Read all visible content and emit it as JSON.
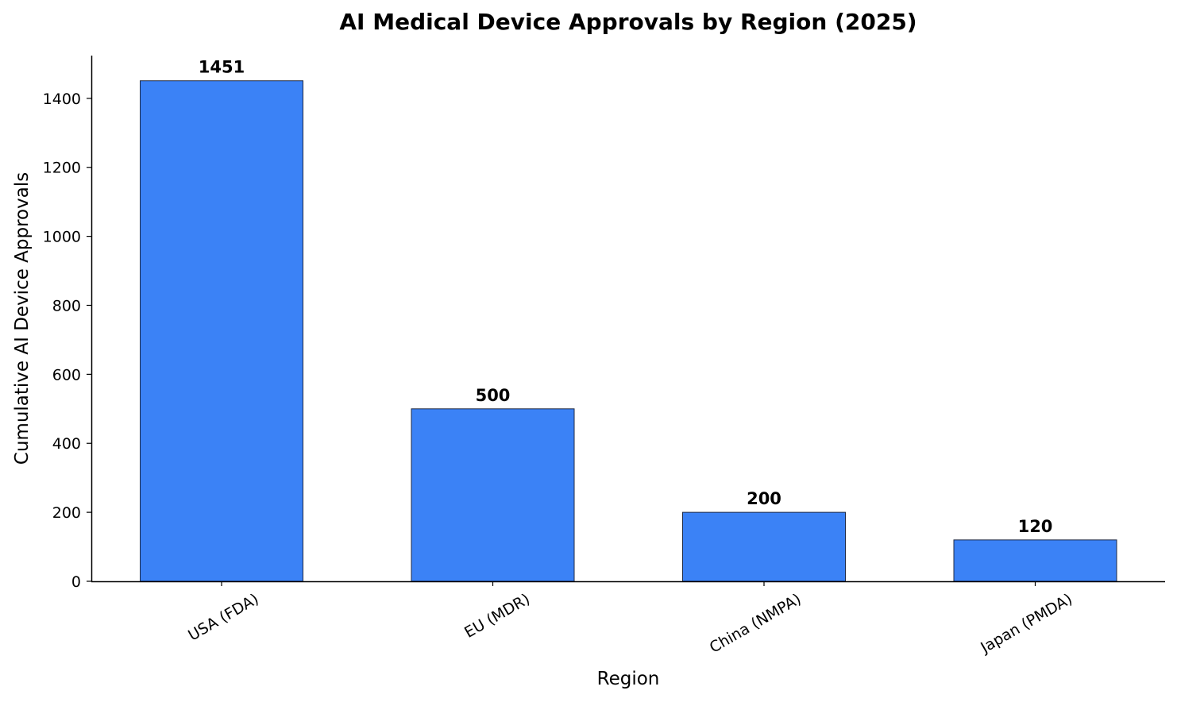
{
  "chart_data": {
    "type": "bar",
    "title": "AI Medical Device Approvals by Region (2025)",
    "xlabel": "Region",
    "ylabel": "Cumulative AI Device Approvals",
    "categories": [
      "USA (FDA)",
      "EU (MDR)",
      "China (NMPA)",
      "Japan (PMDA)"
    ],
    "values": [
      1451,
      500,
      200,
      120
    ],
    "data_labels": [
      "1451",
      "500",
      "200",
      "120"
    ],
    "ylim": [
      0,
      1524
    ],
    "yticks": [
      0,
      200,
      400,
      600,
      800,
      1000,
      1200,
      1400
    ],
    "ytick_labels": [
      "0",
      "200",
      "400",
      "600",
      "800",
      "1000",
      "1200",
      "1400"
    ],
    "bar_color": "#3b82f6",
    "bar_edge_color": "#1f2a44",
    "grid": false,
    "legend": "none"
  }
}
